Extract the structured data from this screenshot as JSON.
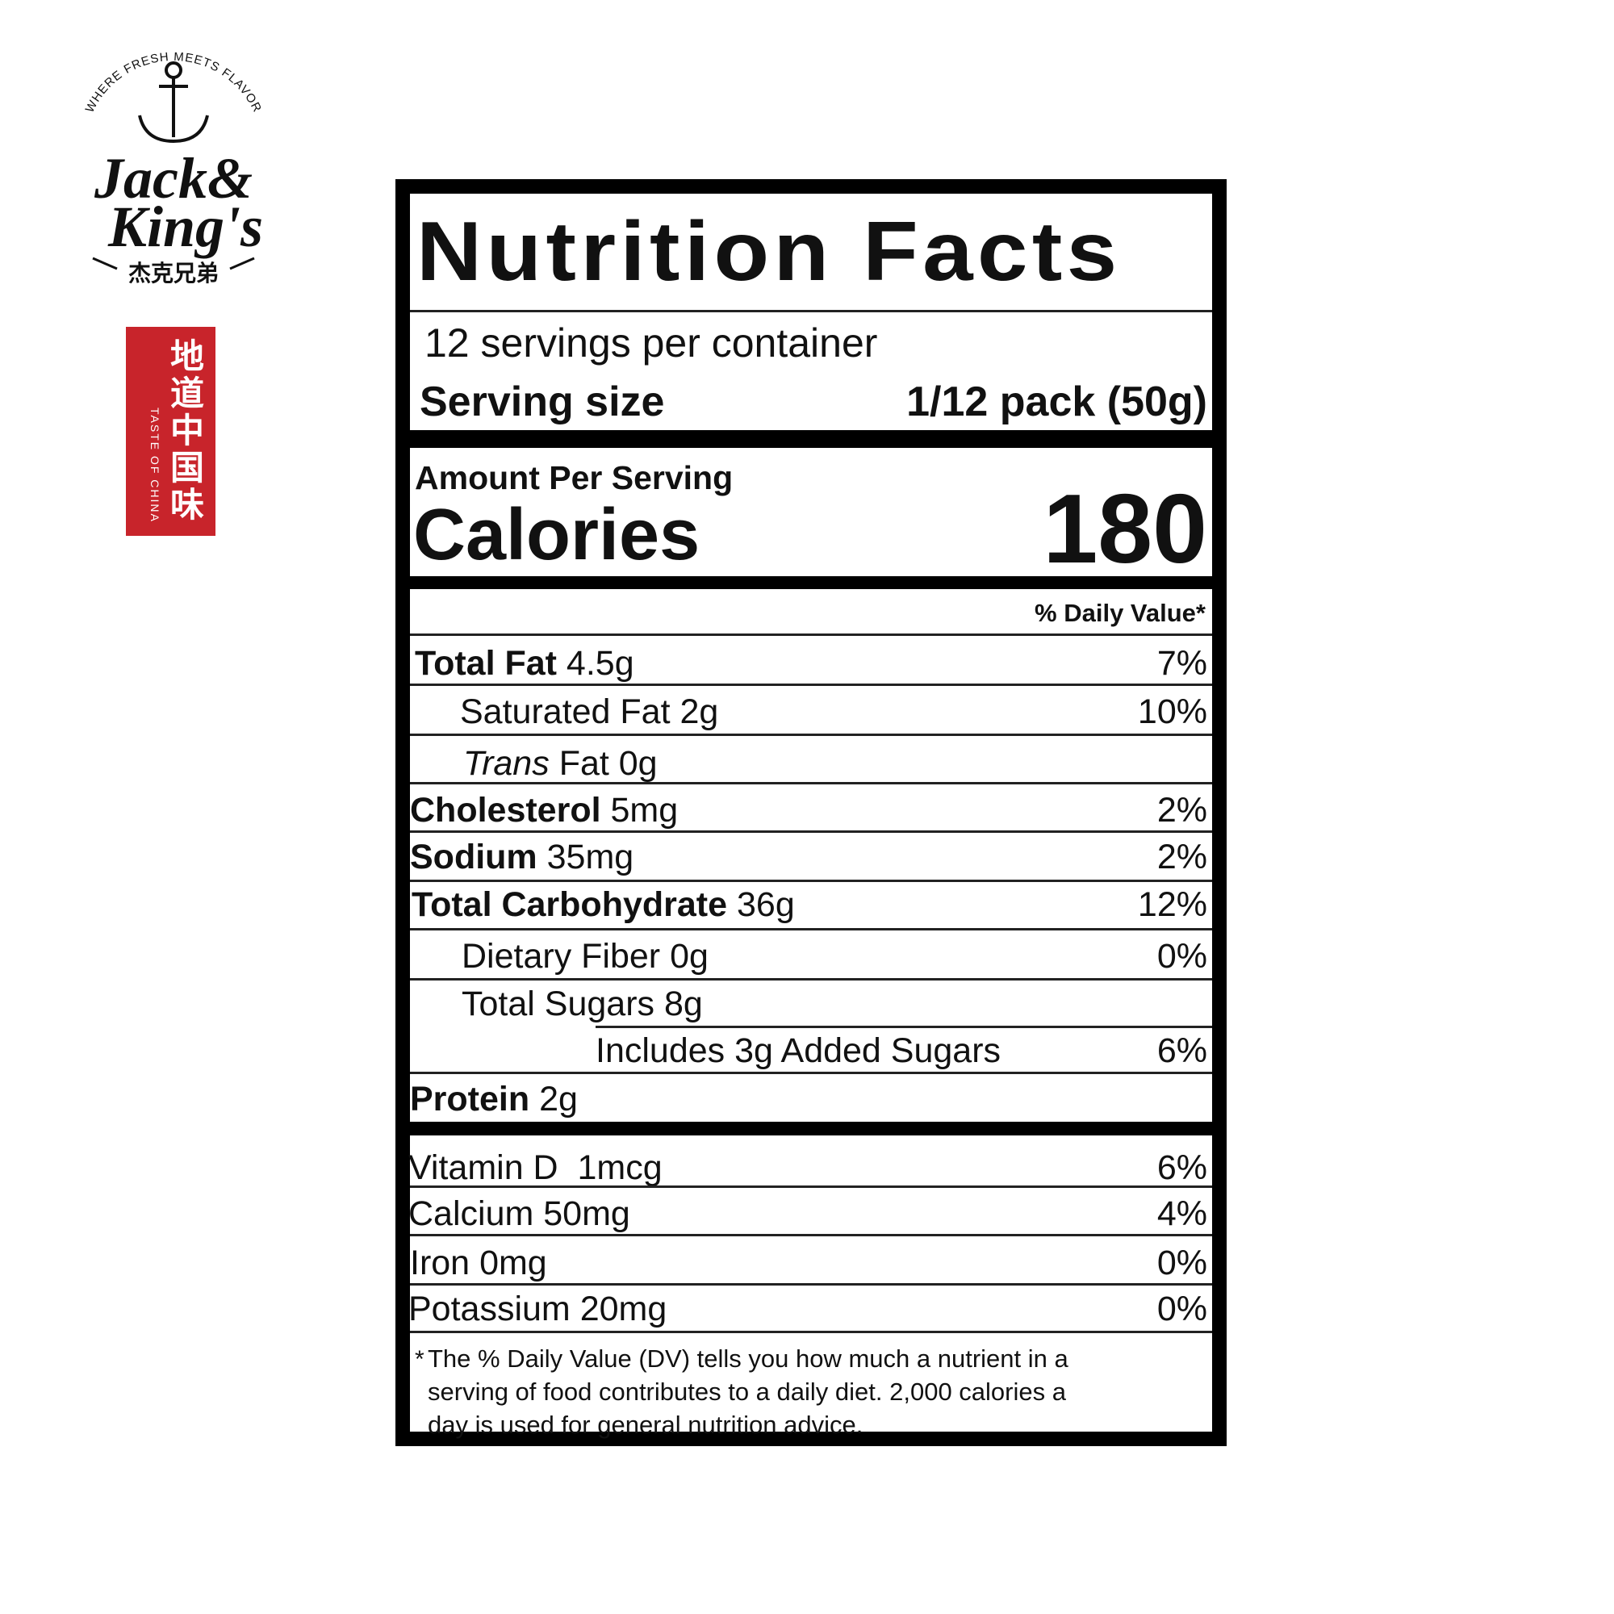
{
  "brand": {
    "tagline": "WHERE FRESH MEETS FLAVOR",
    "name_line1": "Jack&",
    "name_line2": "King's",
    "chinese_name": "杰克兄弟",
    "stamp_chinese": "地道中国味",
    "stamp_english": "TASTE OF CHINA",
    "stamp_color": "#c8242b"
  },
  "label": {
    "title": "Nutrition Facts",
    "servings_per_container": "12 servings per container",
    "serving_size_label": "Serving size",
    "serving_size_value": "1/12 pack (50g)",
    "amount_per_serving": "Amount Per Serving",
    "calories_label": "Calories",
    "calories_value": "180",
    "daily_value_header": "% Daily Value*",
    "nutrients": [
      {
        "name": "Total Fat",
        "amount": "4.5g",
        "dv": "7%"
      },
      {
        "name": "Saturated Fat",
        "amount": "2g",
        "dv": "10%"
      },
      {
        "name": "Trans",
        "amount": "Fat 0g",
        "dv": ""
      },
      {
        "name": "Cholesterol",
        "amount": "5mg",
        "dv": "2%"
      },
      {
        "name": "Sodium",
        "amount": "35mg",
        "dv": "2%"
      },
      {
        "name": "Total Carbohydrate",
        "amount": "36g",
        "dv": "12%"
      },
      {
        "name": "Dietary Fiber",
        "amount": "0g",
        "dv": "0%"
      },
      {
        "name": "Total Sugars",
        "amount": "8g",
        "dv": ""
      },
      {
        "name": "Includes 3g Added Sugars",
        "amount": "",
        "dv": "6%"
      },
      {
        "name": "Protein",
        "amount": "2g",
        "dv": ""
      }
    ],
    "vitamins": [
      {
        "name": "Vitamin D",
        "amount": "1mcg",
        "dv": "6%"
      },
      {
        "name": "Calcium",
        "amount": "50mg",
        "dv": "4%"
      },
      {
        "name": "Iron",
        "amount": "0mg",
        "dv": "0%"
      },
      {
        "name": "Potassium",
        "amount": "20mg",
        "dv": "0%"
      }
    ],
    "footnote_1": "The % Daily Value (DV) tells you how much a nutrient in a",
    "footnote_2": "serving of food contributes to a daily diet. 2,000 calories a",
    "footnote_3": "day is used for general nutrition advice."
  }
}
